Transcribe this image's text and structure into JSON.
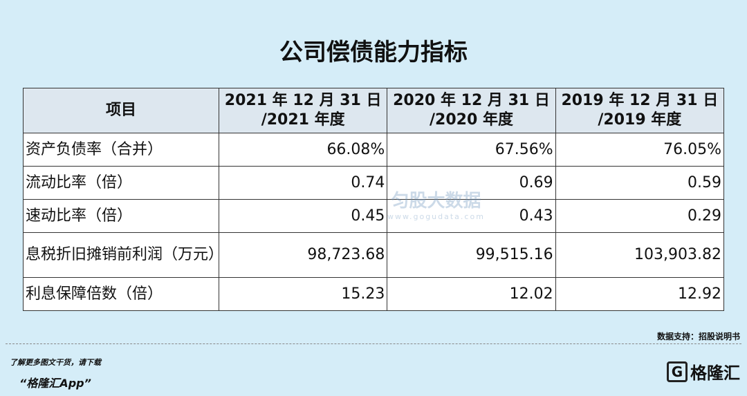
{
  "title": "公司偿债能力指标",
  "table": {
    "header": [
      [
        "项目"
      ],
      [
        "2021 年 12 月 31 日",
        "/2021 年度"
      ],
      [
        "2020 年 12 月 31 日",
        "/2020 年度"
      ],
      [
        "2019 年 12 月 31 日",
        "/2019 年度"
      ]
    ],
    "rows": [
      [
        "资产负债率（合并）",
        "66.08%",
        "67.56%",
        "76.05%"
      ],
      [
        "流动比率（倍）",
        "0.74",
        "0.69",
        "0.59"
      ],
      [
        "速动比率（倍）",
        "0.45",
        "0.43",
        "0.29"
      ],
      [
        "息税折旧摊销前利润（万元）",
        "98,723.68",
        "99,515.16",
        "103,903.82"
      ],
      [
        "利息保障倍数（倍）",
        "15.23",
        "12.02",
        "12.92"
      ]
    ]
  },
  "watermark": {
    "name": "匀股大数据",
    "url": "www.gogudata.com"
  },
  "source": "数据支持：招股说明书",
  "footer": {
    "line1": "了解更多图文干货，请下载",
    "line2": "“格隆汇App”"
  },
  "logo": {
    "text": "格隆汇"
  }
}
